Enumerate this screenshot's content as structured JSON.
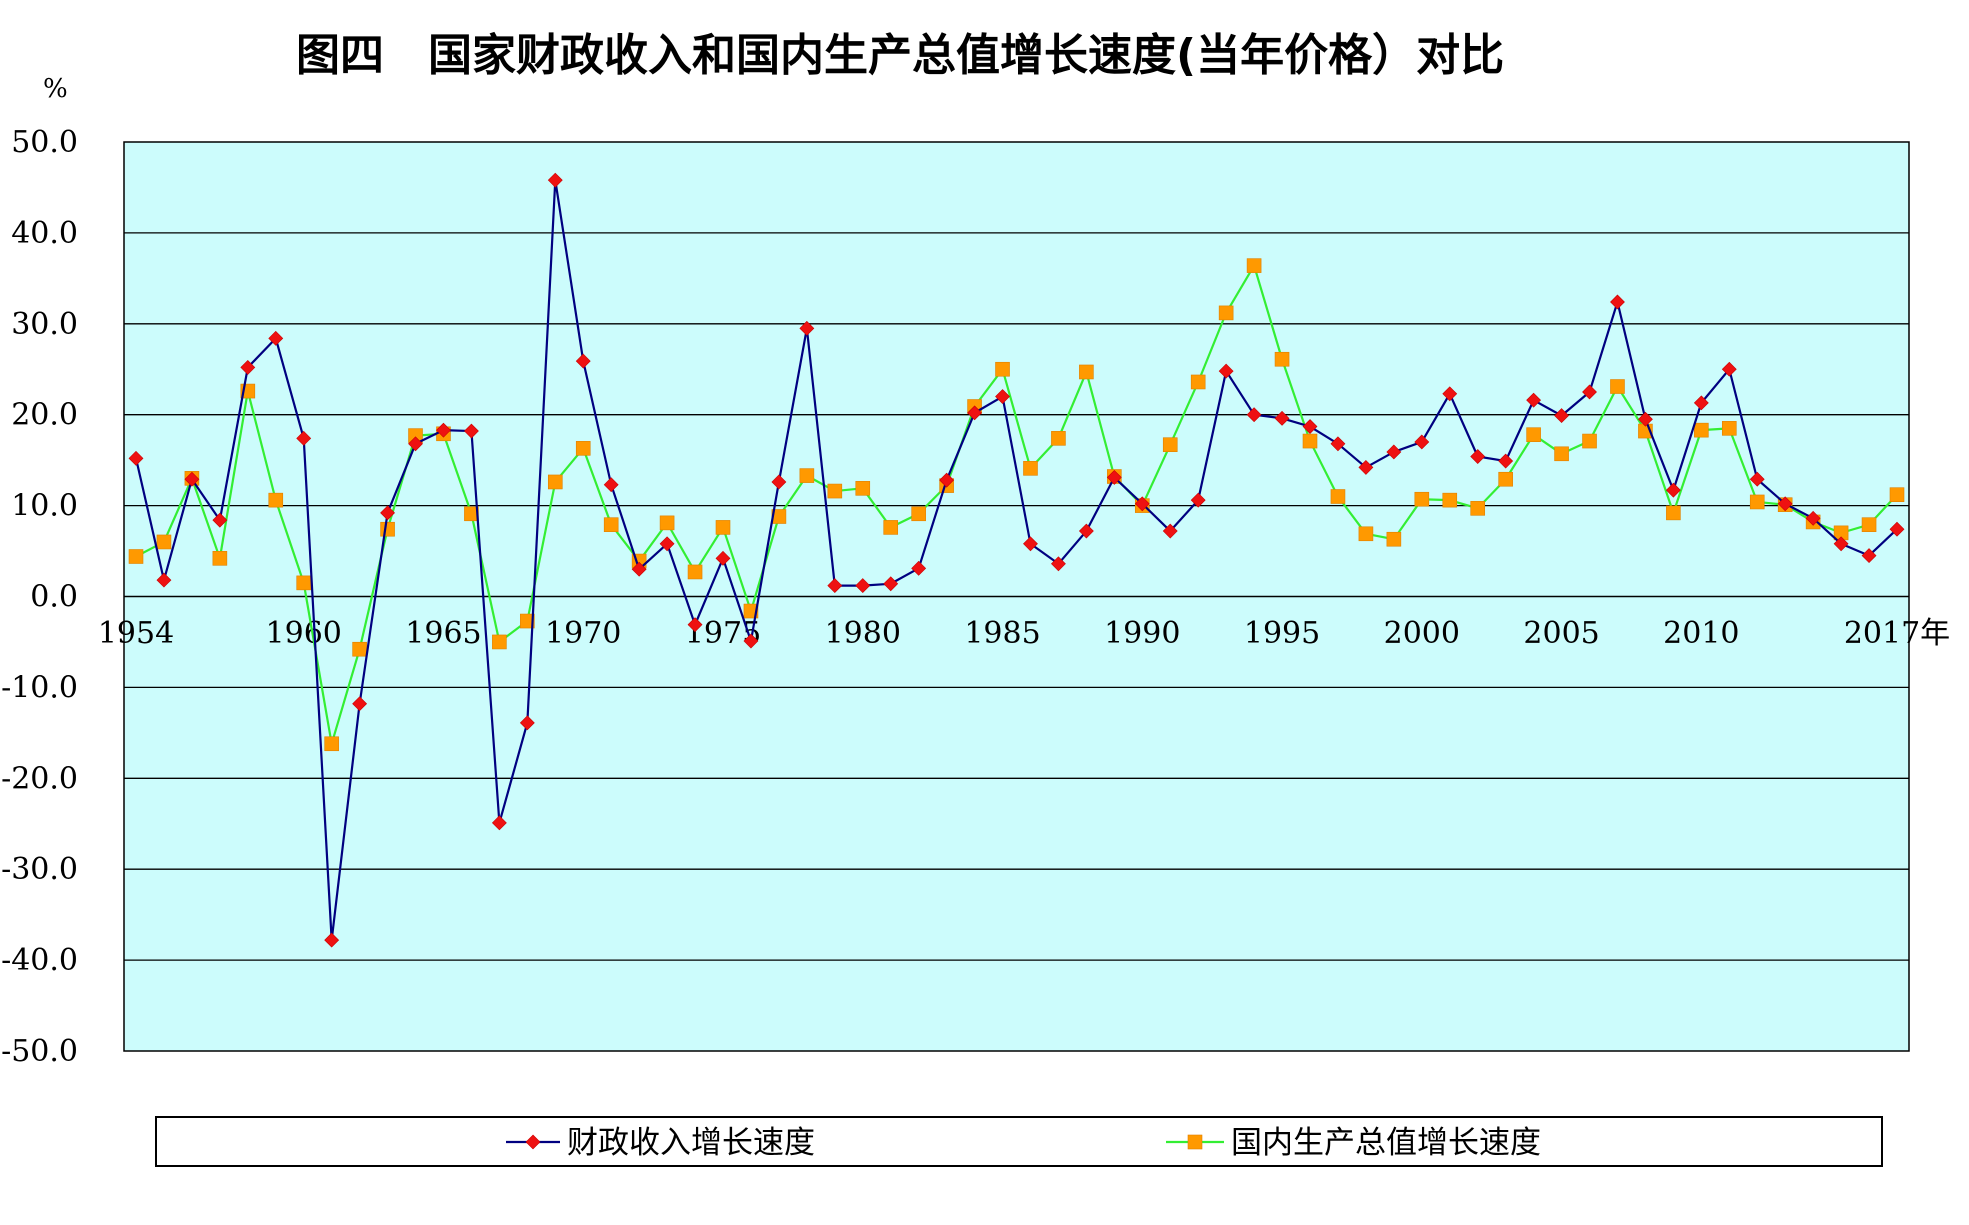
{
  "chart_data": {
    "type": "line",
    "title": "图四　国家财政收入和国内生产总值增长速度(当年价格）对比",
    "ylabel": "%",
    "x_unit": "年",
    "ylim": [
      -50,
      50
    ],
    "yticks": [
      "50.0",
      "40.0",
      "30.0",
      "20.0",
      "10.0",
      "0.0",
      "-10.0",
      "-20.0",
      "-30.0",
      "-40.0",
      "-50.0"
    ],
    "ytick_values": [
      50,
      40,
      30,
      20,
      10,
      0,
      -10,
      -20,
      -30,
      -40,
      -50
    ],
    "xtick_labels": [
      "1954",
      "1960",
      "1965",
      "1970",
      "1975",
      "1980",
      "1985",
      "1990",
      "1995",
      "2000",
      "2005",
      "2010",
      "2017年"
    ],
    "xtick_years": [
      1954,
      1960,
      1965,
      1970,
      1975,
      1980,
      1985,
      1990,
      1995,
      2000,
      2005,
      2010,
      2017
    ],
    "x": [
      1954,
      1955,
      1956,
      1957,
      1958,
      1959,
      1960,
      1961,
      1962,
      1963,
      1964,
      1965,
      1966,
      1967,
      1968,
      1969,
      1970,
      1971,
      1972,
      1973,
      1974,
      1975,
      1976,
      1977,
      1978,
      1979,
      1980,
      1981,
      1982,
      1983,
      1984,
      1985,
      1986,
      1987,
      1988,
      1989,
      1990,
      1991,
      1992,
      1993,
      1994,
      1995,
      1996,
      1997,
      1998,
      1999,
      2000,
      2001,
      2002,
      2003,
      2004,
      2005,
      2006,
      2007,
      2008,
      2009,
      2010,
      2011,
      2012,
      2013,
      2014,
      2015,
      2016,
      2017
    ],
    "grid": true,
    "legend_position": "bottom",
    "plot_background": "#ccfcfc",
    "series": [
      {
        "name": "财政收入增长速度",
        "line_color": "#000080",
        "marker_color": "#ee1111",
        "marker": "diamond",
        "values": [
          15.2,
          1.8,
          12.9,
          8.4,
          25.2,
          28.4,
          17.4,
          -37.8,
          -11.8,
          9.2,
          16.8,
          18.3,
          18.2,
          -24.9,
          -13.9,
          45.8,
          25.9,
          12.3,
          3.0,
          5.8,
          -3.1,
          4.2,
          -4.9,
          12.6,
          29.5,
          1.2,
          1.2,
          1.4,
          3.1,
          12.8,
          20.2,
          22.0,
          5.8,
          3.6,
          7.2,
          13.1,
          10.2,
          7.2,
          10.6,
          24.8,
          20.0,
          19.6,
          18.7,
          16.8,
          14.2,
          15.9,
          17.0,
          22.3,
          15.4,
          14.9,
          21.6,
          19.9,
          22.5,
          32.4,
          19.5,
          11.7,
          21.3,
          25.0,
          12.9,
          10.2,
          8.6,
          5.8,
          4.5,
          7.4
        ]
      },
      {
        "name": "国内生产总值增长速度",
        "line_color": "#33ee33",
        "marker_color": "#ff9900",
        "marker": "square",
        "values": [
          4.4,
          6.0,
          13.0,
          4.2,
          22.6,
          10.6,
          1.5,
          -16.2,
          -5.8,
          7.4,
          17.7,
          17.9,
          9.1,
          -5.0,
          -2.7,
          12.6,
          16.3,
          7.9,
          3.9,
          8.1,
          2.7,
          7.6,
          -1.6,
          8.8,
          13.3,
          11.6,
          11.9,
          7.6,
          9.1,
          12.2,
          20.9,
          25.0,
          14.1,
          17.4,
          24.7,
          13.2,
          10.0,
          16.7,
          23.6,
          31.2,
          36.4,
          26.1,
          17.1,
          11.0,
          6.9,
          6.3,
          10.7,
          10.6,
          9.7,
          12.9,
          17.8,
          15.7,
          17.1,
          23.1,
          18.2,
          9.2,
          18.3,
          18.5,
          10.4,
          10.1,
          8.2,
          7.0,
          7.9,
          11.2
        ]
      }
    ]
  }
}
